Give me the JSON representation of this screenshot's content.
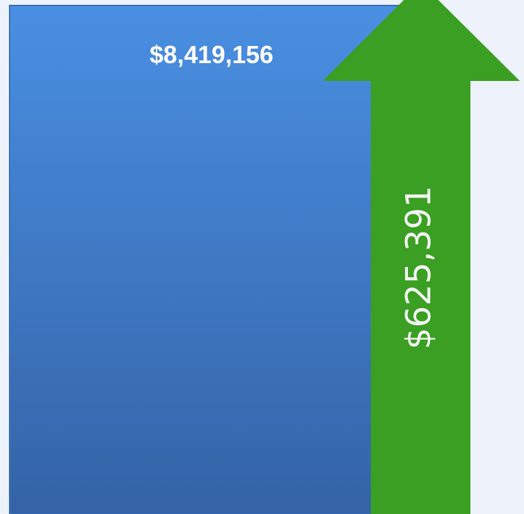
{
  "bar": {
    "label": "$8,419,156"
  },
  "arrow": {
    "label": "$625,391"
  }
}
